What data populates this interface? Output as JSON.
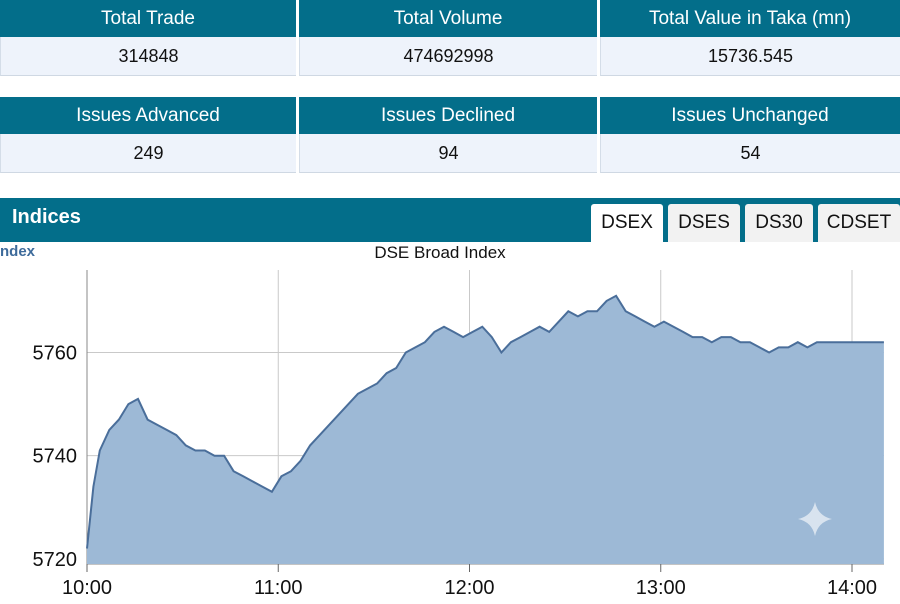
{
  "market_summary": {
    "headers": [
      "Total Trade",
      "Total Volume",
      "Total Value in Taka (mn)"
    ],
    "values": [
      "314848",
      "474692998",
      "15736.545"
    ]
  },
  "issues_summary": {
    "headers": [
      "Issues Advanced",
      "Issues Declined",
      "Issues Unchanged"
    ],
    "values": [
      "249",
      "94",
      "54"
    ]
  },
  "indices": {
    "title": "Indices",
    "tabs": [
      "DSEX",
      "DSES",
      "DS30",
      "CDSET"
    ],
    "active_tab": "DSEX",
    "y_label": "ndex"
  },
  "colors": {
    "header_bg": "#036e8a",
    "value_bg": "#eef3fb",
    "area_fill": "#9db9d6",
    "area_line": "#4a6e9a"
  },
  "chart_data": {
    "type": "area",
    "title": "DSE Broad Index",
    "ylabel": "ndex",
    "xlabel": "",
    "x_ticks": [
      "10:00",
      "11:00",
      "12:00",
      "13:00",
      "14:00"
    ],
    "y_ticks": [
      5720,
      5740,
      5760
    ],
    "ylim": [
      5719,
      5776
    ],
    "grid": true,
    "x": [
      "10:00",
      "10:02",
      "10:04",
      "10:07",
      "10:10",
      "10:13",
      "10:16",
      "10:19",
      "10:22",
      "10:25",
      "10:28",
      "10:31",
      "10:34",
      "10:37",
      "10:40",
      "10:43",
      "10:46",
      "10:49",
      "10:52",
      "10:55",
      "10:58",
      "11:01",
      "11:04",
      "11:07",
      "11:10",
      "11:13",
      "11:16",
      "11:19",
      "11:22",
      "11:25",
      "11:28",
      "11:31",
      "11:34",
      "11:37",
      "11:40",
      "11:43",
      "11:46",
      "11:49",
      "11:52",
      "11:55",
      "11:58",
      "12:01",
      "12:04",
      "12:07",
      "12:10",
      "12:13",
      "12:16",
      "12:19",
      "12:22",
      "12:25",
      "12:28",
      "12:31",
      "12:34",
      "12:37",
      "12:40",
      "12:43",
      "12:46",
      "12:49",
      "12:52",
      "12:55",
      "12:58",
      "13:01",
      "13:04",
      "13:07",
      "13:10",
      "13:13",
      "13:16",
      "13:19",
      "13:22",
      "13:25",
      "13:28",
      "13:31",
      "13:34",
      "13:37",
      "13:40",
      "13:43",
      "13:46",
      "13:49",
      "13:52",
      "13:55",
      "13:58",
      "14:01",
      "14:04",
      "14:07",
      "14:10"
    ],
    "values": [
      5722,
      5734,
      5741,
      5745,
      5747,
      5750,
      5751,
      5747,
      5746,
      5745,
      5744,
      5742,
      5741,
      5741,
      5740,
      5740,
      5737,
      5736,
      5735,
      5734,
      5733,
      5736,
      5737,
      5739,
      5742,
      5744,
      5746,
      5748,
      5750,
      5752,
      5753,
      5754,
      5756,
      5757,
      5760,
      5761,
      5762,
      5764,
      5765,
      5764,
      5763,
      5764,
      5765,
      5763,
      5760,
      5762,
      5763,
      5764,
      5765,
      5764,
      5766,
      5768,
      5767,
      5768,
      5768,
      5770,
      5771,
      5768,
      5767,
      5766,
      5765,
      5766,
      5765,
      5764,
      5763,
      5763,
      5762,
      5763,
      5763,
      5762,
      5762,
      5761,
      5760,
      5761,
      5761,
      5762,
      5761,
      5762,
      5762,
      5762,
      5762,
      5762,
      5762,
      5762,
      5762
    ]
  }
}
